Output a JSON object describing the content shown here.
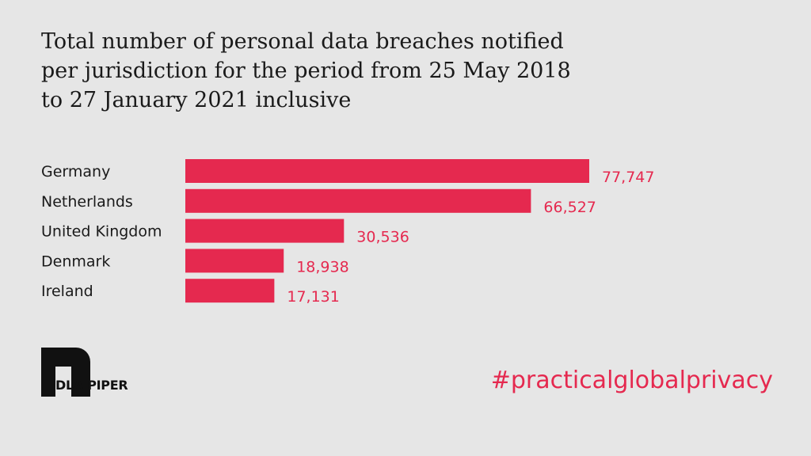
{
  "header": {
    "title_lines": [
      "Total number of personal data breaches notified",
      "per jurisdiction for the period from 25 May 2018",
      "to 27 January 2021 inclusive"
    ]
  },
  "chart_data": {
    "type": "bar",
    "orientation": "horizontal",
    "title": "Total number of personal data breaches notified per jurisdiction for the period from 25 May 2018 to 27 January 2021 inclusive",
    "categories": [
      "Germany",
      "Netherlands",
      "United Kingdom",
      "Denmark",
      "Ireland"
    ],
    "values": [
      77747,
      66527,
      30536,
      18938,
      17131
    ],
    "value_labels": [
      "77,747",
      "66,527",
      "30,536",
      "18,938",
      "17,131"
    ],
    "xlim": [
      0,
      77747
    ],
    "grid": false,
    "legend": "none",
    "bar_color": "#e5294f"
  },
  "branding": {
    "logo_text": "DLA PIPER",
    "hashtag": "#practicalglobalprivacy",
    "accent_color": "#e5294f"
  }
}
